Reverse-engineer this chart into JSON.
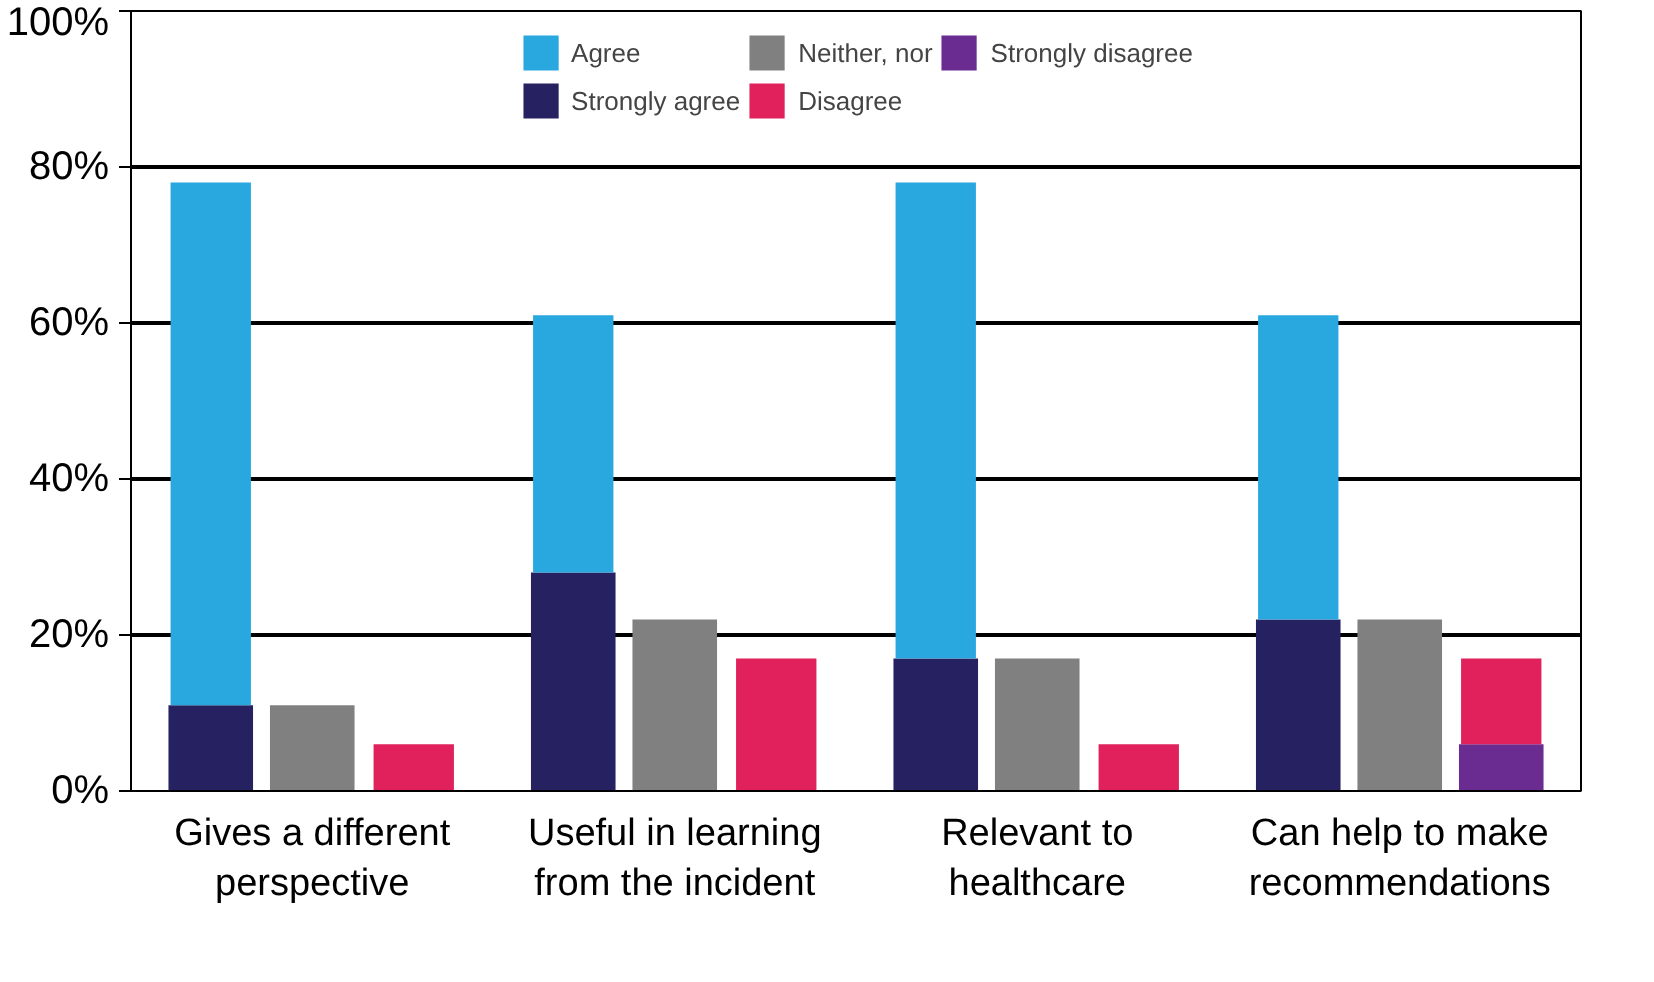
{
  "chart_data": {
    "type": "bar",
    "categories": [
      "Gives a different perspective",
      "Useful in learning from the incident",
      "Relevant to healthcare",
      "Can help to make recommendations"
    ],
    "series": [
      {
        "name": "Strongly agree",
        "color": "#262262",
        "values": [
          11,
          28,
          17,
          22
        ]
      },
      {
        "name": "Agree",
        "color": "#29a8e0",
        "values": [
          67,
          33,
          61,
          39
        ],
        "base": [
          11,
          28,
          17,
          22
        ]
      },
      {
        "name": "Neither, nor",
        "color": "#808080",
        "values": [
          11,
          22,
          17,
          22
        ]
      },
      {
        "name": "Strongly disagree",
        "color": "#6a2c91",
        "values": [
          null,
          null,
          null,
          6
        ]
      },
      {
        "name": "Disagree",
        "color": "#e0215c",
        "values": [
          6,
          17,
          6,
          11
        ],
        "base": [
          0,
          0,
          0,
          6
        ]
      }
    ],
    "ylim": [
      0,
      100
    ],
    "yticks": [
      {
        "value": 0,
        "label": "0%"
      },
      {
        "value": 20,
        "label": "20%"
      },
      {
        "value": 40,
        "label": "40%"
      },
      {
        "value": 60,
        "label": "60%"
      },
      {
        "value": 80,
        "label": "80%"
      },
      {
        "value": 100,
        "label": "100%"
      }
    ],
    "grid": "y",
    "legend": "top"
  }
}
